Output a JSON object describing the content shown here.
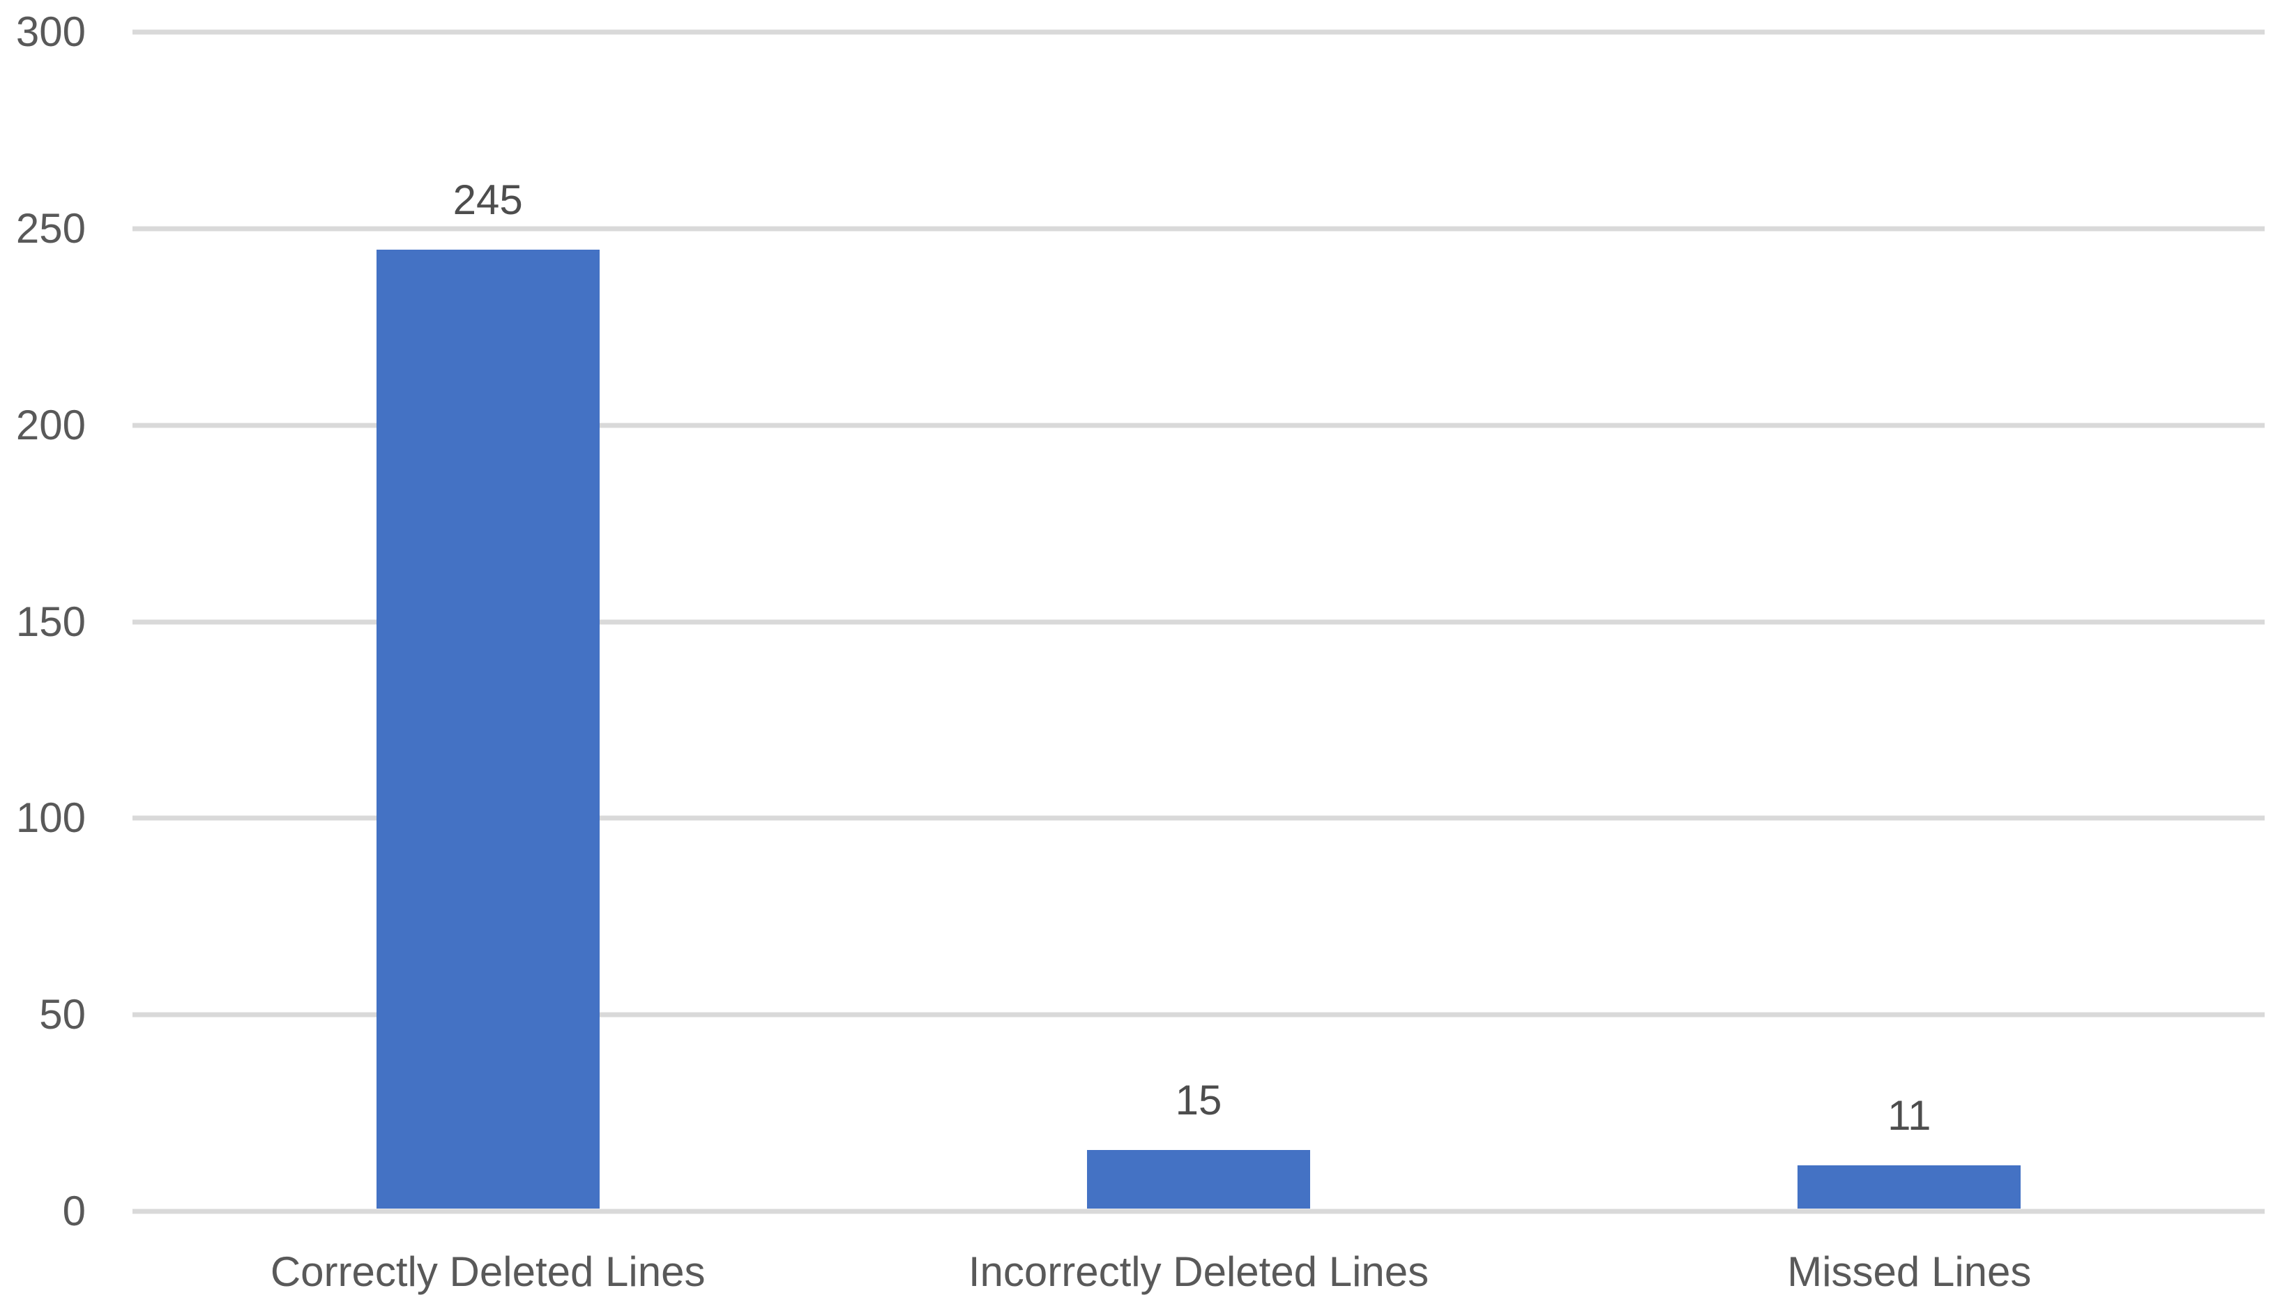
{
  "chart_data": {
    "type": "bar",
    "title": "",
    "xlabel": "",
    "ylabel": "",
    "categories": [
      "Correctly Deleted Lines",
      "Incorrectly Deleted Lines",
      "Missed Lines"
    ],
    "values": [
      245,
      15,
      11
    ],
    "data_labels": [
      "245",
      "15",
      "11"
    ],
    "ylim": [
      0,
      300
    ],
    "ytick_interval": 50,
    "yticks": [
      "300",
      "250",
      "200",
      "150",
      "100",
      "50",
      "0"
    ],
    "grid": true,
    "legend": false,
    "colors": {
      "bar": "#4472C4",
      "gridline": "#D9D9D9",
      "axis_line": "#D9D9D9",
      "tick_text": "#595959",
      "category_text": "#595959",
      "data_label_text": "#4D4D4D",
      "background": "#FFFFFF"
    }
  }
}
